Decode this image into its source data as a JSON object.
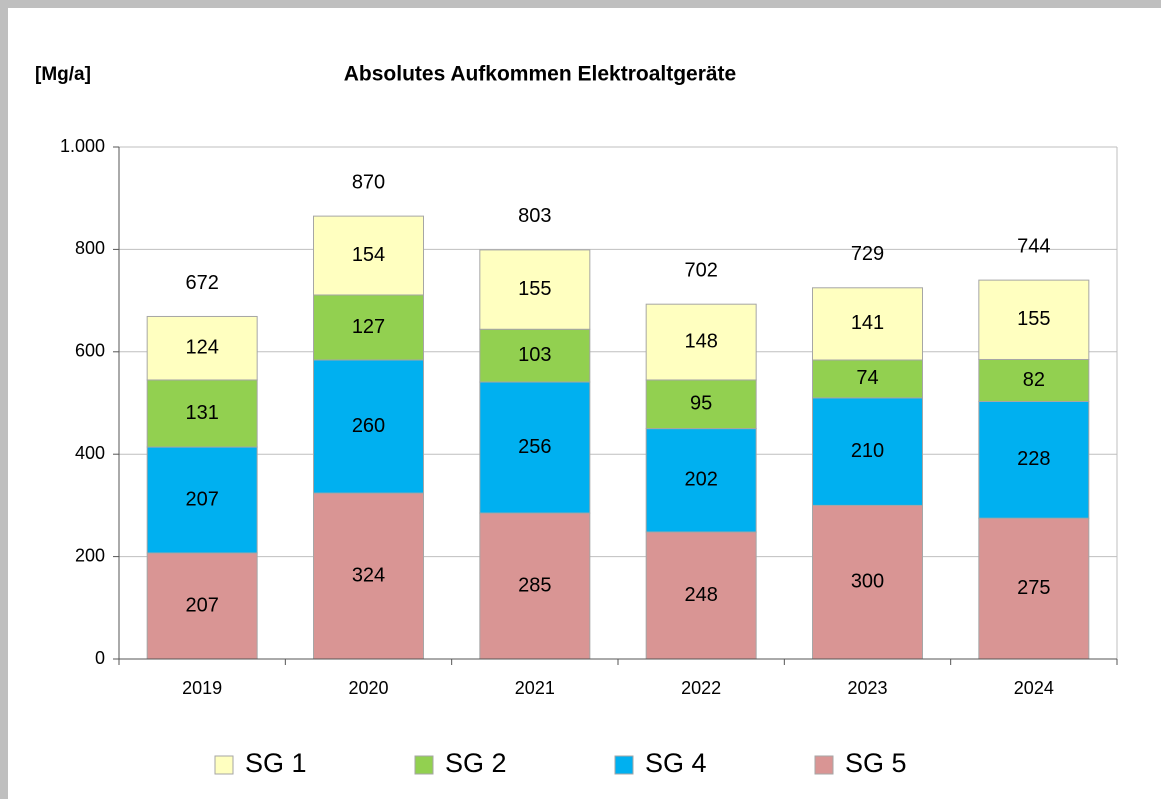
{
  "chart_data": {
    "type": "stacked_bar",
    "title": "Absolutes Aufkommen Elektroaltgeräte",
    "y_label": "[Mg/a]",
    "categories": [
      "2019",
      "2020",
      "2021",
      "2022",
      "2023",
      "2024"
    ],
    "series": [
      {
        "name": "SG 1",
        "color": "#ffffc0",
        "values": [
          124,
          154,
          155,
          148,
          141,
          155
        ]
      },
      {
        "name": "SG 2",
        "color": "#92d050",
        "values": [
          131,
          127,
          103,
          95,
          74,
          82
        ]
      },
      {
        "name": "SG 4",
        "color": "#00b0f0",
        "values": [
          207,
          260,
          256,
          202,
          210,
          228
        ]
      },
      {
        "name": "SG 5",
        "color": "#d99594",
        "values": [
          207,
          324,
          285,
          248,
          300,
          275
        ]
      }
    ],
    "totals": [
      672,
      870,
      803,
      702,
      729,
      744
    ],
    "ylim": [
      0,
      1000
    ],
    "yticks": [
      0,
      200,
      400,
      600,
      800,
      {
        "value": 1000,
        "label": "1.000"
      }
    ],
    "grid": true,
    "legend": "bottom"
  }
}
